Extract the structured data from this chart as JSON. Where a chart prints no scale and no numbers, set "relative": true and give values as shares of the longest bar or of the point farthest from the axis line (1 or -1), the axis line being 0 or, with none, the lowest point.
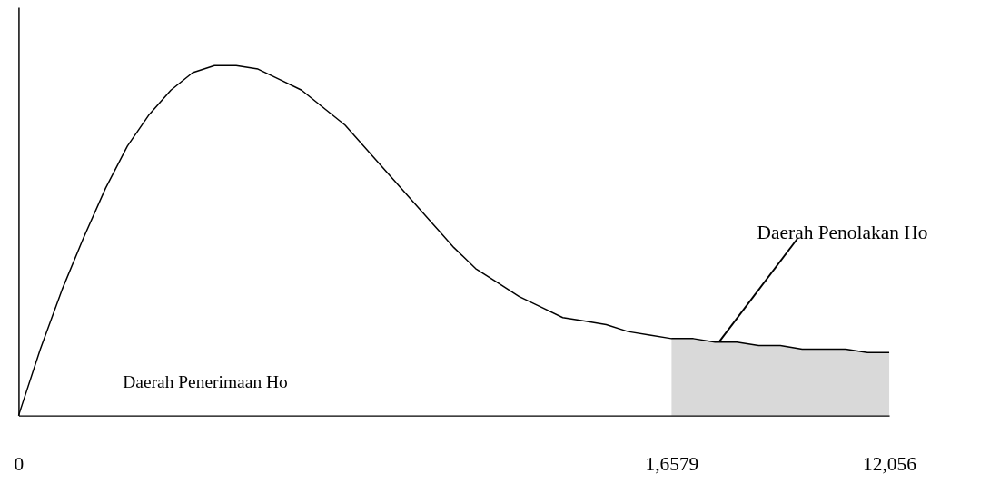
{
  "chart_data": {
    "type": "line",
    "relative": true,
    "categories": [
      "0",
      null,
      null,
      null,
      null,
      null,
      null,
      null,
      null,
      null,
      null,
      null,
      null,
      null,
      null,
      null,
      null,
      null,
      null,
      null,
      null,
      null,
      null,
      null,
      null,
      null,
      null,
      null,
      null,
      null,
      "1,6579",
      null,
      null,
      null,
      null,
      null,
      null,
      null,
      null,
      null,
      "12,056"
    ],
    "series": [
      {
        "color": "#000000",
        "values": [
          0,
          0.19,
          0.36,
          0.51,
          0.65,
          0.77,
          0.86,
          0.93,
          0.98,
          1.0,
          1.0,
          0.99,
          0.96,
          0.93,
          0.88,
          0.83,
          0.76,
          0.69,
          0.62,
          0.55,
          0.48,
          0.42,
          0.38,
          0.34,
          0.31,
          0.28,
          0.27,
          0.26,
          0.24,
          0.23,
          0.22,
          0.22,
          0.21,
          0.21,
          0.2,
          0.2,
          0.19,
          0.19,
          0.19,
          0.18,
          0.18
        ]
      }
    ],
    "bands": [
      {
        "axis": "x",
        "from": "1,6579",
        "to": "12,056",
        "label": "Daerah Penolakan Ho",
        "color": "#000000"
      }
    ],
    "annotations": [
      "Daerah Penerimaan Ho"
    ],
    "grid": false,
    "marker": "none",
    "line_style": "solid"
  }
}
